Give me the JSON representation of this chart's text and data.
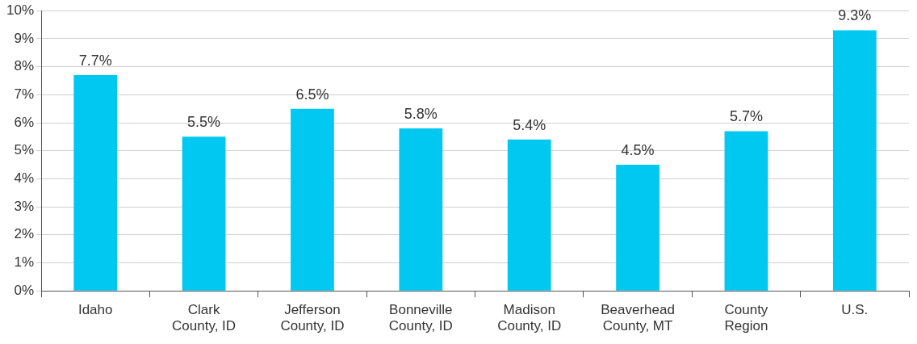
{
  "chart_data": {
    "type": "bar",
    "categories": [
      "Idaho",
      "Clark County, ID",
      "Jefferson County, ID",
      "Bonneville County, ID",
      "Madison County, ID",
      "Beaverhead County, MT",
      "County Region",
      "U.S."
    ],
    "values": [
      7.7,
      5.5,
      6.5,
      5.8,
      5.4,
      4.5,
      5.7,
      9.3
    ],
    "value_labels": [
      "7.7%",
      "5.5%",
      "6.5%",
      "5.8%",
      "5.4%",
      "4.5%",
      "5.7%",
      "9.3%"
    ],
    "color": "#00c8f0",
    "ylim": [
      0,
      10
    ],
    "yticks": [
      {
        "value": 0,
        "label": "0%"
      },
      {
        "value": 1,
        "label": "1%"
      },
      {
        "value": 2,
        "label": "2%"
      },
      {
        "value": 3,
        "label": "3%"
      },
      {
        "value": 4,
        "label": "4%"
      },
      {
        "value": 5,
        "label": "5%"
      },
      {
        "value": 6,
        "label": "6%"
      },
      {
        "value": 7,
        "label": "7%"
      },
      {
        "value": 8,
        "label": "8%"
      },
      {
        "value": 9,
        "label": "9%"
      },
      {
        "value": 10,
        "label": "10%"
      }
    ],
    "grid": "y"
  }
}
